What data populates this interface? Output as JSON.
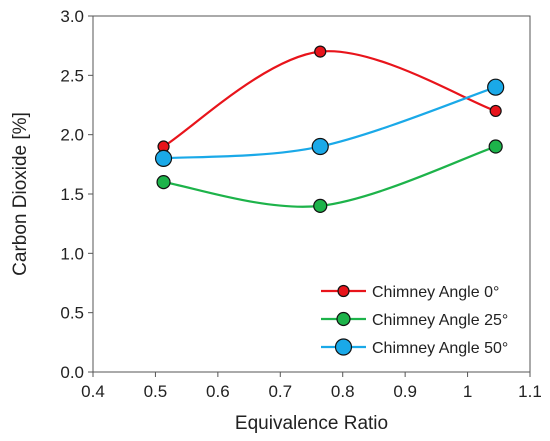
{
  "chart_data": {
    "type": "line",
    "xlabel": "Equivalence Ratio",
    "ylabel": "Carbon Dioxide [%]",
    "xlim": [
      0.4,
      1.1
    ],
    "ylim": [
      0.0,
      3.0
    ],
    "x_ticks": [
      "0.4",
      "0.5",
      "0.6",
      "0.7",
      "0.8",
      "0.9",
      "1",
      "1.1"
    ],
    "y_ticks": [
      "0.0",
      "0.5",
      "1.0",
      "1.5",
      "2.0",
      "2.5",
      "3.0"
    ],
    "grid": false,
    "smooth": true,
    "legend_position": "bottom-right",
    "series": [
      {
        "name": "Chimney Angle 0°",
        "color": "#e8141b",
        "marker_size": "small",
        "x": [
          0.513,
          0.764,
          1.045
        ],
        "y": [
          1.9,
          2.7,
          2.2
        ]
      },
      {
        "name": "Chimney Angle 25°",
        "color": "#1db34a",
        "marker_size": "medium",
        "x": [
          0.513,
          0.764,
          1.045
        ],
        "y": [
          1.6,
          1.4,
          1.9
        ]
      },
      {
        "name": "Chimney Angle 50°",
        "color": "#1aa9e8",
        "marker_size": "large",
        "x": [
          0.513,
          0.764,
          1.045
        ],
        "y": [
          1.8,
          1.9,
          2.4
        ]
      }
    ]
  }
}
